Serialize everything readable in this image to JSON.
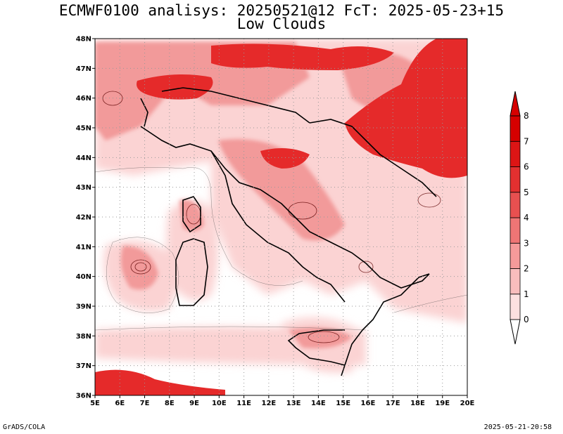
{
  "title_line1": "ECMWF0100 analisys: 20250521@12 FcT: 2025-05-23+15",
  "title_line2": "Low Clouds",
  "footer_left": "GrADS/COLA",
  "footer_right": "2025-05-21-20:58",
  "map": {
    "lon_range": [
      5,
      20
    ],
    "lat_range": [
      36,
      48
    ],
    "lon_ticks": [
      "5E",
      "6E",
      "7E",
      "8E",
      "9E",
      "10E",
      "11E",
      "12E",
      "13E",
      "14E",
      "15E",
      "16E",
      "17E",
      "18E",
      "19E",
      "20E"
    ],
    "lat_ticks": [
      "36N",
      "37N",
      "38N",
      "39N",
      "40N",
      "41N",
      "42N",
      "43N",
      "44N",
      "45N",
      "46N",
      "47N",
      "48N"
    ],
    "grid": "dotted"
  },
  "colorbar": {
    "labels": [
      "0",
      "1",
      "2",
      "3",
      "4",
      "5",
      "6",
      "7",
      "8"
    ],
    "colors": [
      "#ffffff",
      "#fde0e0",
      "#f9bdbd",
      "#f59a9a",
      "#ef7575",
      "#e85050",
      "#e33030",
      "#dd1515",
      "#d60000"
    ]
  }
}
